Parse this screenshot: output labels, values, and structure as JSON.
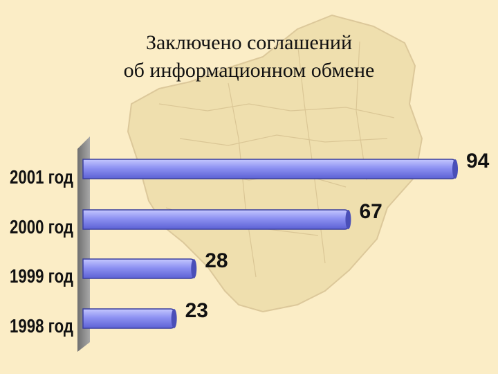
{
  "chart_data": {
    "type": "bar",
    "orientation": "horizontal",
    "title": "Заключено соглашений об информационном обмене",
    "title_lines": [
      "Заключено соглашений",
      "об информационном обмене"
    ],
    "categories": [
      "2001 год",
      "2000 год",
      "1999 год",
      "1998 год"
    ],
    "values": [
      94,
      67,
      28,
      23
    ],
    "xlim": [
      0,
      94
    ],
    "grid": false,
    "legend": "none",
    "bar_color": "#8b8ff0",
    "bar_edge_color": "#3a3f9e"
  },
  "colors": {
    "background": "#fbedc6",
    "map": "#ecdcaa",
    "wall": "#8f8f8f"
  }
}
